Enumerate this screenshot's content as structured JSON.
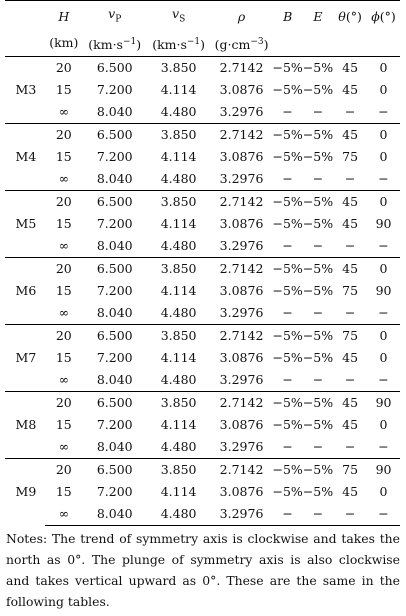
{
  "table": {
    "header_row1": [
      "",
      "H",
      "vP",
      "vS",
      "ρ",
      "B",
      "E",
      "θ(°)",
      "φ(°)"
    ],
    "header_row2": [
      "",
      "(km)",
      "(km·s−1)",
      "(km·s−1)",
      "(g·cm−3)",
      "",
      "",
      "",
      ""
    ],
    "models": [
      {
        "name": "M3",
        "rows": [
          [
            "20",
            "6.500",
            "3.850",
            "2.7142",
            "−5%",
            "−5%",
            "45",
            "0"
          ],
          [
            "15",
            "7.200",
            "4.114",
            "3.0876",
            "−5%",
            "−5%",
            "45",
            "0"
          ],
          [
            "∞",
            "8.040",
            "4.480",
            "3.2976",
            "−",
            "−",
            "−",
            "−"
          ]
        ]
      },
      {
        "name": "M4",
        "rows": [
          [
            "20",
            "6.500",
            "3.850",
            "2.7142",
            "−5%",
            "−5%",
            "45",
            "0"
          ],
          [
            "15",
            "7.200",
            "4.114",
            "3.0876",
            "−5%",
            "−5%",
            "75",
            "0"
          ],
          [
            "∞",
            "8.040",
            "4.480",
            "3.2976",
            "−",
            "−",
            "−",
            "−"
          ]
        ]
      },
      {
        "name": "M5",
        "rows": [
          [
            "20",
            "6.500",
            "3.850",
            "2.7142",
            "−5%",
            "−5%",
            "45",
            "0"
          ],
          [
            "15",
            "7.200",
            "4.114",
            "3.0876",
            "−5%",
            "−5%",
            "45",
            "90"
          ],
          [
            "∞",
            "8.040",
            "4.480",
            "3.2976",
            "−",
            "−",
            "−",
            "−"
          ]
        ]
      },
      {
        "name": "M6",
        "rows": [
          [
            "20",
            "6.500",
            "3.850",
            "2.7142",
            "−5%",
            "−5%",
            "45",
            "0"
          ],
          [
            "15",
            "7.200",
            "4.114",
            "3.0876",
            "−5%",
            "−5%",
            "75",
            "90"
          ],
          [
            "∞",
            "8.040",
            "4.480",
            "3.2976",
            "−",
            "−",
            "−",
            "−"
          ]
        ]
      },
      {
        "name": "M7",
        "rows": [
          [
            "20",
            "6.500",
            "3.850",
            "2.7142",
            "−5%",
            "−5%",
            "75",
            "0"
          ],
          [
            "15",
            "7.200",
            "4.114",
            "3.0876",
            "−5%",
            "−5%",
            "45",
            "0"
          ],
          [
            "∞",
            "8.040",
            "4.480",
            "3.2976",
            "−",
            "−",
            "−",
            "−"
          ]
        ]
      },
      {
        "name": "M8",
        "rows": [
          [
            "20",
            "6.500",
            "3.850",
            "2.7142",
            "−5%",
            "−5%",
            "45",
            "90"
          ],
          [
            "15",
            "7.200",
            "4.114",
            "3.0876",
            "−5%",
            "−5%",
            "45",
            "0"
          ],
          [
            "∞",
            "8.040",
            "4.480",
            "3.2976",
            "−",
            "−",
            "−",
            "−"
          ]
        ]
      },
      {
        "name": "M9",
        "rows": [
          [
            "20",
            "6.500",
            "3.850",
            "2.7142",
            "−5%",
            "−5%",
            "75",
            "90"
          ],
          [
            "15",
            "7.200",
            "4.114",
            "3.0876",
            "−5%",
            "−5%",
            "45",
            "0"
          ],
          [
            "∞",
            "8.040",
            "4.480",
            "3.2976",
            "−",
            "−",
            "−",
            "−"
          ]
        ]
      }
    ]
  },
  "notes": "Notes: The trend of symmetry axis is clockwise and takes the north as 0°. The plunge of symmetry axis is also clockwise and takes vertical upward as 0°. These are the same in the following tables."
}
